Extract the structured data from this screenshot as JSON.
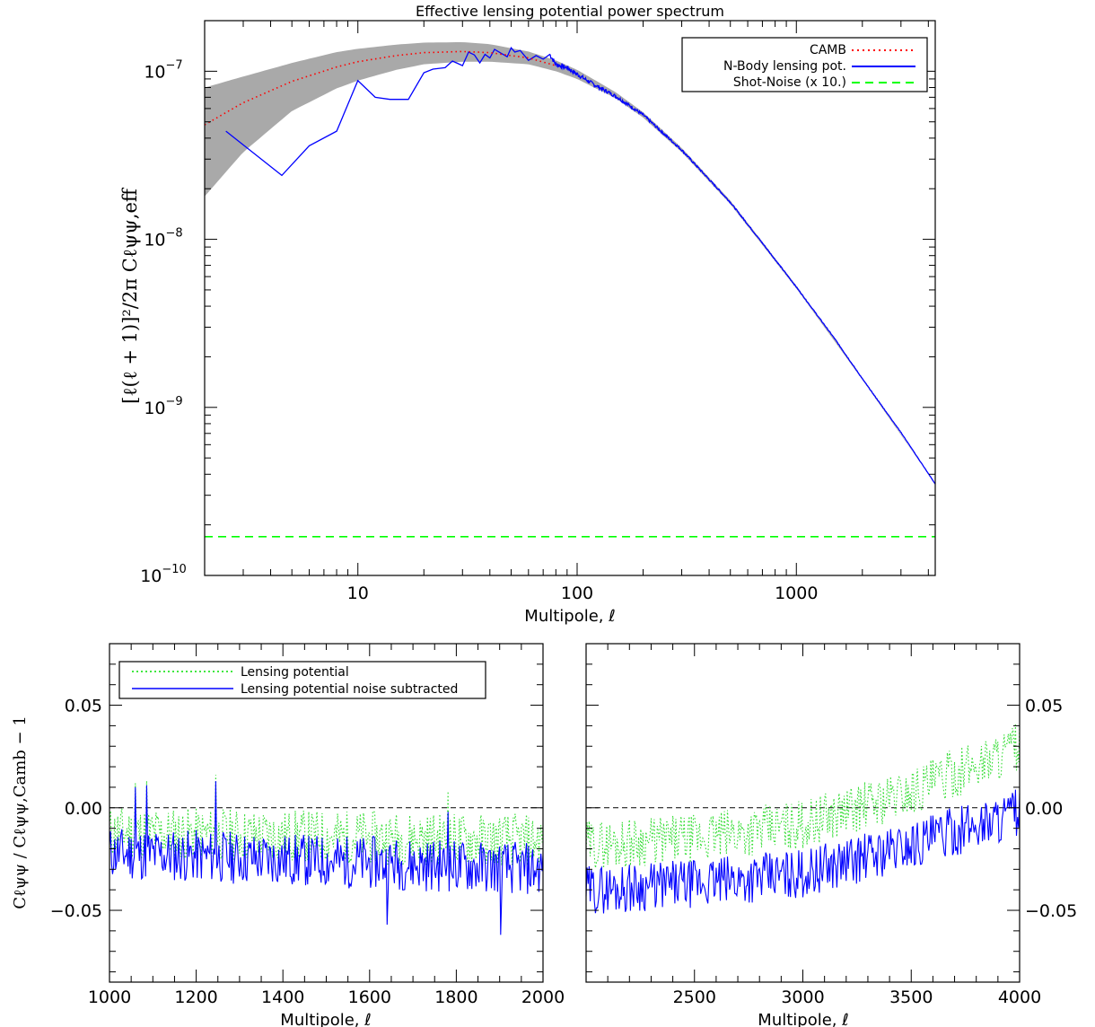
{
  "chart_data": [
    {
      "id": "main",
      "type": "line",
      "title": "Effective lensing potential power spectrum",
      "xlabel": "Multipole, ℓ",
      "ylabel": "[ℓ(ℓ + 1)]²/2π  Cℓψψ,eff",
      "xscale": "log",
      "yscale": "log",
      "xlim": [
        2,
        4300
      ],
      "ylim": [
        1e-10,
        2e-07
      ],
      "xticks": [
        {
          "value": 10,
          "label": "10"
        },
        {
          "value": 100,
          "label": "100"
        },
        {
          "value": 1000,
          "label": "1000"
        }
      ],
      "yticks": [
        {
          "value": 1e-10,
          "label": "10",
          "exp": "−10"
        },
        {
          "value": 1e-09,
          "label": "10",
          "exp": "−9"
        },
        {
          "value": 1e-08,
          "label": "10",
          "exp": "−8"
        },
        {
          "value": 1e-07,
          "label": "10",
          "exp": "−7"
        }
      ],
      "legend": {
        "position": "top-right",
        "entries": [
          "CAMB",
          "N-Body lensing pot.",
          "Shot-Noise (x 10.)"
        ]
      },
      "colors": {
        "camb": "#ff0000",
        "nbody": "#0000ff",
        "noise": "#00ff00",
        "band": "#a9a9a9"
      },
      "series": [
        {
          "name": "CAMB",
          "style": "dotted",
          "x": [
            2,
            3,
            5,
            8,
            10,
            15,
            20,
            30,
            40,
            60,
            80,
            100,
            150,
            200,
            300,
            500,
            700,
            1000,
            1500,
            2000,
            3000,
            4300
          ],
          "y": [
            4.8e-08,
            6.5e-08,
            8.7e-08,
            1.06e-07,
            1.14e-07,
            1.24e-07,
            1.29e-07,
            1.31e-07,
            1.29e-07,
            1.2e-07,
            1.08e-07,
            9.6e-08,
            7.2e-08,
            5.5e-08,
            3.4e-08,
            1.66e-08,
            9.5e-09,
            5.2e-09,
            2.55e-09,
            1.48e-09,
            7.1e-10,
            3.5e-10
          ]
        },
        {
          "name": "N-Body lensing pot.",
          "style": "solid",
          "x": [
            2.5,
            4.5,
            6,
            8,
            10,
            12,
            14,
            17,
            20,
            22,
            25,
            27,
            30,
            32,
            34,
            36,
            38,
            40,
            42,
            45,
            48,
            50,
            52,
            55,
            60,
            65,
            70,
            75,
            80,
            90,
            100,
            120,
            150,
            200,
            300,
            500,
            700,
            1000,
            1500,
            2000,
            3000,
            4300
          ],
          "y": [
            4.4e-08,
            2.4e-08,
            3.6e-08,
            4.4e-08,
            8.8e-08,
            7e-08,
            6.8e-08,
            6.8e-08,
            9.8e-08,
            1.03e-07,
            1.05e-07,
            1.15e-07,
            1.08e-07,
            1.3e-07,
            1.25e-07,
            1.12e-07,
            1.26e-07,
            1.2e-07,
            1.35e-07,
            1.28e-07,
            1.22e-07,
            1.38e-07,
            1.3e-07,
            1.33e-07,
            1.16e-07,
            1.24e-07,
            1.18e-07,
            1.26e-07,
            1.1e-07,
            1.05e-07,
            9.6e-08,
            8.3e-08,
            7.1e-08,
            5.5e-08,
            3.4e-08,
            1.66e-08,
            9.5e-09,
            5.2e-09,
            2.55e-09,
            1.48e-09,
            7.1e-10,
            3.5e-10
          ]
        },
        {
          "name": "Shot-Noise (x 10.)",
          "style": "dashed",
          "x": [
            2,
            4300
          ],
          "y": [
            1.7e-10,
            1.7e-10
          ]
        }
      ],
      "band": {
        "name": "cosmic variance region",
        "x": [
          2,
          3,
          5,
          8,
          10,
          15,
          20,
          30,
          40,
          60,
          80,
          100,
          150,
          200,
          300,
          500,
          1000,
          2000,
          4300
        ],
        "upper": [
          8e-08,
          9.3e-08,
          1.12e-07,
          1.3e-07,
          1.36e-07,
          1.44e-07,
          1.48e-07,
          1.49e-07,
          1.45e-07,
          1.31e-07,
          1.16e-07,
          1.02e-07,
          7.5e-08,
          5.7e-08,
          3.5e-08,
          1.7e-08,
          5.3e-09,
          1.5e-09,
          3.5e-10
        ],
        "lower": [
          1.8e-08,
          3.3e-08,
          5.8e-08,
          7.9e-08,
          8.8e-08,
          1.02e-07,
          1.1e-07,
          1.14e-07,
          1.14e-07,
          1.1e-07,
          1e-07,
          9e-08,
          6.9e-08,
          5.3e-08,
          3.3e-08,
          1.62e-08,
          5.1e-09,
          1.46e-09,
          3.5e-10
        ]
      }
    },
    {
      "id": "residual-low",
      "type": "line",
      "xlabel": "Multipole, ℓ",
      "ylabel": "Cℓψψ  / Cℓψψ,Camb  − 1",
      "xlim": [
        1000,
        2000
      ],
      "ylim": [
        -0.085,
        0.08
      ],
      "xticks": [
        {
          "value": 1000,
          "label": "1000"
        },
        {
          "value": 1200,
          "label": "1200"
        },
        {
          "value": 1400,
          "label": "1400"
        },
        {
          "value": 1600,
          "label": "1600"
        },
        {
          "value": 1800,
          "label": "1800"
        },
        {
          "value": 2000,
          "label": "2000"
        }
      ],
      "yticks": [
        {
          "value": 0.05,
          "label": "0.05"
        },
        {
          "value": 0.0,
          "label": "0.00"
        },
        {
          "value": -0.05,
          "label": "−0.05"
        }
      ],
      "legend": {
        "position": "top-left",
        "entries": [
          "Lensing potential",
          "Lensing potential noise subtracted"
        ]
      },
      "series": [
        {
          "name": "Lensing potential",
          "style": "dotted",
          "trend_x": [
            1000,
            2000
          ],
          "trend_y": [
            -0.012,
            -0.016
          ],
          "amplitude": 0.013,
          "spikes": [
            [
              1060,
              0.012
            ],
            [
              1085,
              0.013
            ],
            [
              1245,
              0.016
            ],
            [
              1780,
              0.008
            ]
          ]
        },
        {
          "name": "Lensing potential noise subtracted",
          "style": "solid",
          "trend_x": [
            1000,
            2000
          ],
          "trend_y": [
            -0.022,
            -0.03
          ],
          "amplitude": 0.013,
          "spikes": [
            [
              1060,
              0.01
            ],
            [
              1085,
              0.011
            ],
            [
              1245,
              0.013
            ],
            [
              1780,
              -0.002
            ],
            [
              1903,
              -0.062
            ],
            [
              1640,
              -0.057
            ]
          ]
        }
      ],
      "reference_line": 0.0
    },
    {
      "id": "residual-high",
      "type": "line",
      "xlabel": "Multipole, ℓ",
      "xlim": [
        2000,
        4000
      ],
      "ylim": [
        -0.085,
        0.08
      ],
      "xticks": [
        {
          "value": 2500,
          "label": "2500"
        },
        {
          "value": 3000,
          "label": "3000"
        },
        {
          "value": 3500,
          "label": "3500"
        },
        {
          "value": 4000,
          "label": "4000"
        }
      ],
      "yticks": [
        {
          "value": 0.05,
          "label": "0.05"
        },
        {
          "value": 0.0,
          "label": "0.00"
        },
        {
          "value": -0.05,
          "label": "−0.05"
        }
      ],
      "series": [
        {
          "name": "Lensing potential",
          "style": "dotted",
          "trend_x": [
            2000,
            2500,
            3000,
            3500,
            4000
          ],
          "trend_y": [
            -0.018,
            -0.015,
            -0.008,
            0.008,
            0.03
          ],
          "amplitude": 0.012
        },
        {
          "name": "Lensing potential noise subtracted",
          "style": "solid",
          "trend_x": [
            2000,
            2500,
            3000,
            3500,
            4000
          ],
          "trend_y": [
            -0.04,
            -0.037,
            -0.032,
            -0.018,
            -0.002
          ],
          "amplitude": 0.012
        }
      ],
      "reference_line": 0.0
    }
  ]
}
